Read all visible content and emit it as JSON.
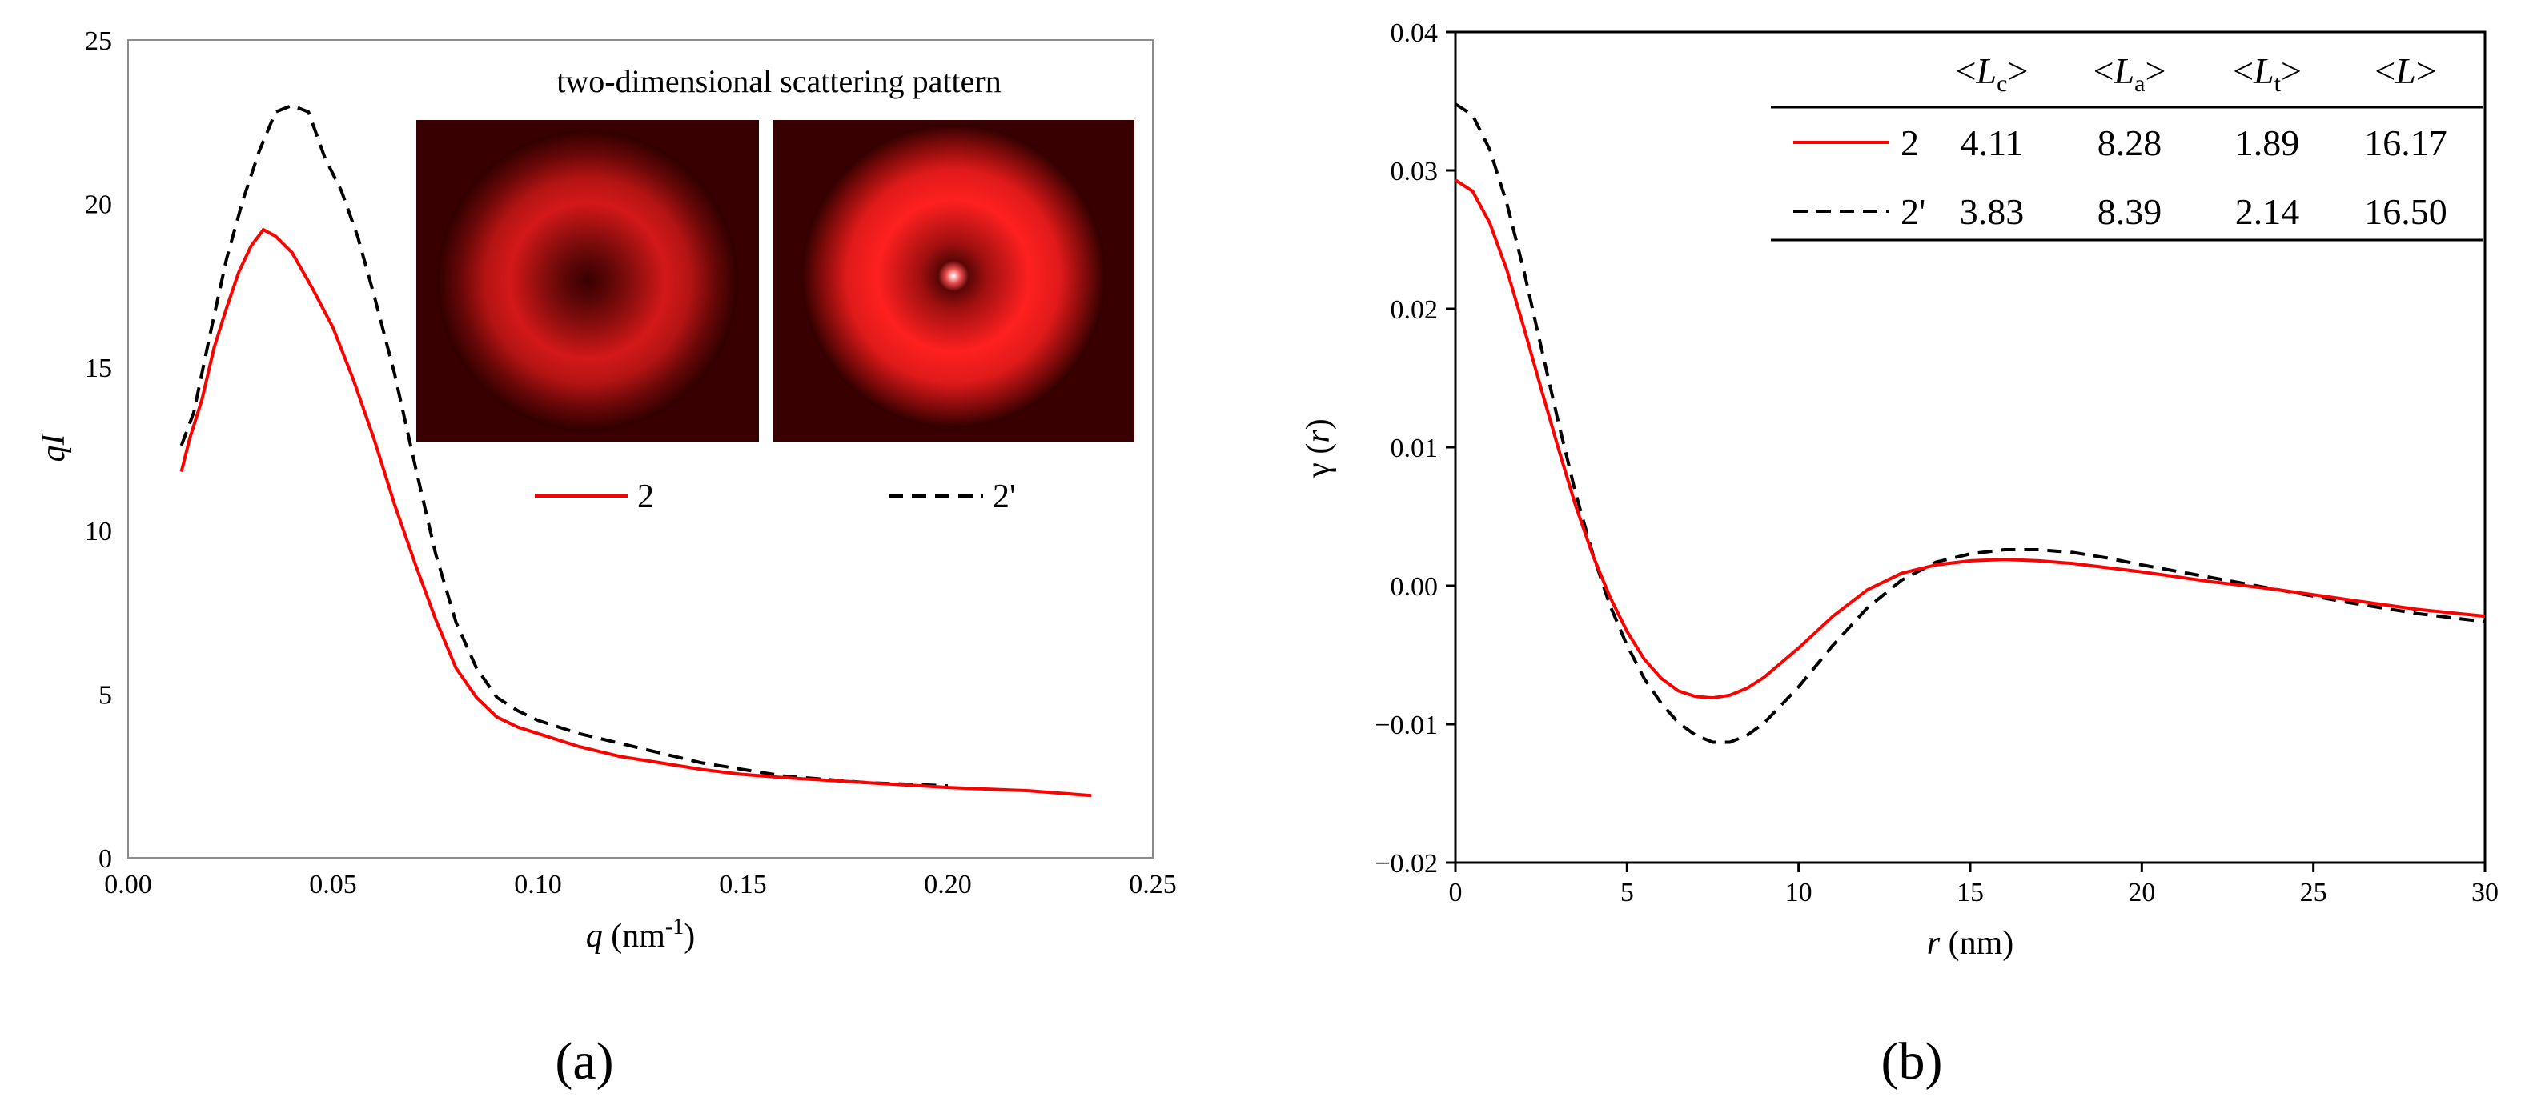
{
  "chart_data": [
    {
      "panel": "(a)",
      "type": "line",
      "xlabel_var": "q",
      "xlabel_unit_pre": " (nm",
      "xlabel_sup": "-1",
      "xlabel_unit_post": ")",
      "ylabel": "qI",
      "xlim": [
        0,
        0.25
      ],
      "ylim": [
        0,
        25
      ],
      "x_ticks": [
        0,
        0.05,
        0.1,
        0.15,
        0.2,
        0.25
      ],
      "x_tick_labels": [
        "0.00",
        "0.05",
        "0.10",
        "0.15",
        "0.20",
        "0.25"
      ],
      "y_ticks": [
        0,
        5,
        10,
        15,
        20,
        25
      ],
      "y_tick_labels": [
        "0",
        "5",
        "10",
        "15",
        "20",
        "25"
      ],
      "inset_title": "two-dimensional scattering pattern",
      "inset_images": [
        "2",
        "2'"
      ],
      "series": [
        {
          "name": "2",
          "color": "#ff0000",
          "dash": "solid",
          "x": [
            0.013,
            0.015,
            0.018,
            0.021,
            0.024,
            0.027,
            0.03,
            0.033,
            0.036,
            0.04,
            0.045,
            0.05,
            0.055,
            0.06,
            0.065,
            0.07,
            0.075,
            0.08,
            0.085,
            0.09,
            0.095,
            0.1,
            0.11,
            0.12,
            0.13,
            0.14,
            0.15,
            0.16,
            0.18,
            0.2,
            0.22,
            0.235
          ],
          "y": [
            11.8,
            12.8,
            14.0,
            15.6,
            16.8,
            17.9,
            18.7,
            19.2,
            19.0,
            18.5,
            17.4,
            16.2,
            14.6,
            12.8,
            10.8,
            9.0,
            7.3,
            5.8,
            4.9,
            4.3,
            4.0,
            3.8,
            3.4,
            3.1,
            2.9,
            2.7,
            2.55,
            2.45,
            2.3,
            2.15,
            2.05,
            1.9
          ]
        },
        {
          "name": "2'",
          "color": "#000000",
          "dash": "dashed",
          "x": [
            0.013,
            0.016,
            0.02,
            0.024,
            0.028,
            0.032,
            0.036,
            0.04,
            0.044,
            0.048,
            0.052,
            0.056,
            0.06,
            0.065,
            0.07,
            0.075,
            0.08,
            0.085,
            0.09,
            0.095,
            0.1,
            0.11,
            0.12,
            0.13,
            0.14,
            0.15,
            0.16,
            0.18,
            0.2
          ],
          "y": [
            12.6,
            13.6,
            16.0,
            18.3,
            20.1,
            21.6,
            22.8,
            23.0,
            22.8,
            21.4,
            20.4,
            19.0,
            17.2,
            14.8,
            12.0,
            9.3,
            7.2,
            5.8,
            4.9,
            4.5,
            4.2,
            3.8,
            3.5,
            3.2,
            2.9,
            2.7,
            2.5,
            2.3,
            2.2
          ]
        }
      ]
    },
    {
      "panel": "(b)",
      "type": "line",
      "xlabel_var": "r",
      "xlabel_unit": " (nm)",
      "ylabel_pre": "γ (",
      "ylabel_var": "r",
      "ylabel_post": ")",
      "xlim": [
        0,
        30
      ],
      "ylim": [
        -0.02,
        0.04
      ],
      "x_ticks": [
        0,
        5,
        10,
        15,
        20,
        25,
        30
      ],
      "x_tick_labels": [
        "0",
        "5",
        "10",
        "15",
        "20",
        "25",
        "30"
      ],
      "y_ticks": [
        -0.02,
        -0.01,
        0,
        0.01,
        0.02,
        0.03,
        0.04
      ],
      "y_tick_labels": [
        "−0.02",
        "−0.01",
        "0.00",
        "0.01",
        "0.02",
        "0.03",
        "0.04"
      ],
      "series": [
        {
          "name": "2",
          "color": "#ff0000",
          "dash": "solid",
          "x": [
            0,
            0.5,
            1,
            1.5,
            2,
            2.5,
            3,
            3.5,
            4,
            4.5,
            5,
            5.5,
            6,
            6.5,
            7,
            7.5,
            8,
            8.5,
            9,
            10,
            11,
            12,
            13,
            14,
            15,
            16,
            17,
            18,
            19,
            20,
            22,
            24,
            26,
            28,
            30
          ],
          "y": [
            0.0293,
            0.0285,
            0.0262,
            0.0228,
            0.0186,
            0.0142,
            0.0099,
            0.0058,
            0.0022,
            -0.0008,
            -0.0033,
            -0.0053,
            -0.0067,
            -0.0076,
            -0.008,
            -0.0081,
            -0.0079,
            -0.0074,
            -0.0066,
            -0.0045,
            -0.0022,
            -0.0003,
            0.0009,
            0.0015,
            0.0018,
            0.0019,
            0.0018,
            0.0016,
            0.0013,
            0.001,
            0.0003,
            -0.0003,
            -0.001,
            -0.0017,
            -0.0022
          ]
        },
        {
          "name": "2'",
          "color": "#000000",
          "dash": "dashed",
          "x": [
            0,
            0.5,
            1,
            1.5,
            2,
            2.5,
            3,
            3.5,
            4,
            4.5,
            5,
            5.5,
            6,
            6.5,
            7,
            7.5,
            8,
            8.5,
            9,
            10,
            11,
            12,
            13,
            14,
            15,
            16,
            17,
            18,
            19,
            20,
            22,
            24,
            26,
            28,
            30
          ],
          "y": [
            0.0348,
            0.034,
            0.0315,
            0.0276,
            0.0227,
            0.0172,
            0.0118,
            0.0067,
            0.0023,
            -0.0014,
            -0.0043,
            -0.0067,
            -0.0085,
            -0.0099,
            -0.0108,
            -0.0113,
            -0.0113,
            -0.0108,
            -0.0099,
            -0.0073,
            -0.0043,
            -0.0016,
            0.0004,
            0.0017,
            0.0023,
            0.0026,
            0.0026,
            0.0024,
            0.002,
            0.0015,
            0.0006,
            -0.0003,
            -0.0012,
            -0.002,
            -0.0026
          ]
        }
      ],
      "table": {
        "headers": [
          {
            "pre": "<",
            "var": "L",
            "sub": "c",
            "post": ">"
          },
          {
            "pre": "<",
            "var": "L",
            "sub": "a",
            "post": ">"
          },
          {
            "pre": "<",
            "var": "L",
            "sub": "t",
            "post": ">"
          },
          {
            "pre": "<",
            "var": "L",
            "sub": "",
            "post": ">"
          }
        ],
        "rows": [
          {
            "label": "2",
            "values": [
              "4.11",
              "8.28",
              "1.89",
              "16.17"
            ]
          },
          {
            "label": "2'",
            "values": [
              "3.83",
              "8.39",
              "2.14",
              "16.50"
            ]
          }
        ]
      }
    }
  ],
  "panel_labels": [
    "(a)",
    "(b)"
  ]
}
